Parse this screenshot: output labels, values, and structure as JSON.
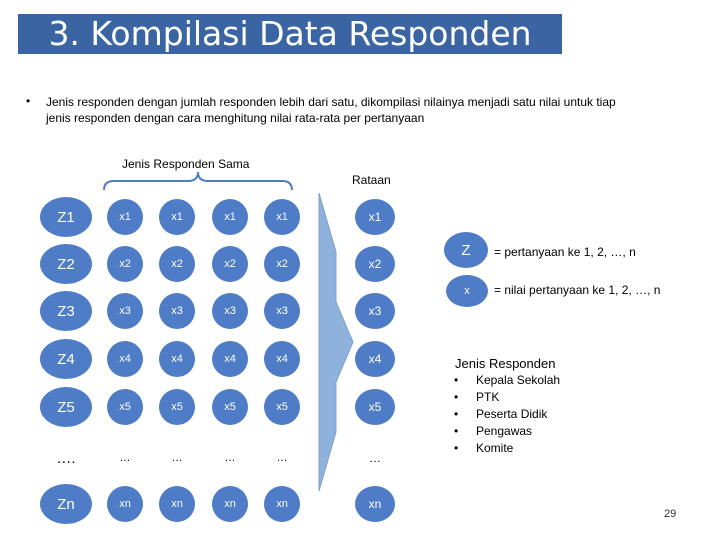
{
  "title": "3. Kompilasi Data Responden",
  "intro_text": "Jenis responden dengan jumlah responden lebih dari satu, dikompilasi nilainya menjadi satu nilai untuk tiap jenis responden dengan cara menghitung nilai rata-rata per pertanyaan",
  "bullet": "•",
  "label_same": "Jenis Responden Sama",
  "label_avg": "Rataan",
  "rows": [
    {
      "label": "Z1",
      "value": "x1",
      "avg": "x1"
    },
    {
      "label": "Z2",
      "value": "x2",
      "avg": "x2"
    },
    {
      "label": "Z3",
      "value": "x3",
      "avg": "x3"
    },
    {
      "label": "Z4",
      "value": "x4",
      "avg": "x4"
    },
    {
      "label": "Z5",
      "value": "x5",
      "avg": "x5"
    },
    {
      "label": "….",
      "value": "…",
      "avg": "…"
    },
    {
      "label": "Zn",
      "value": "xn",
      "avg": "xn"
    }
  ],
  "legend": {
    "z_symbol": "Z",
    "z_text": "= pertanyaan ke 1, 2, …, n",
    "x_symbol": "x",
    "x_text": "= nilai pertanyaan ke 1, 2, …, n"
  },
  "respondent_types": {
    "title": "Jenis Responden",
    "items": [
      "Kepala Sekolah",
      "PTK",
      "Peserta Didik",
      "Pengawas",
      "Komite"
    ]
  },
  "page_number": "29",
  "colors": {
    "circle": "#4f7cc6",
    "title_bar": "#3b64a3",
    "arrow": "#8fb2dc"
  }
}
